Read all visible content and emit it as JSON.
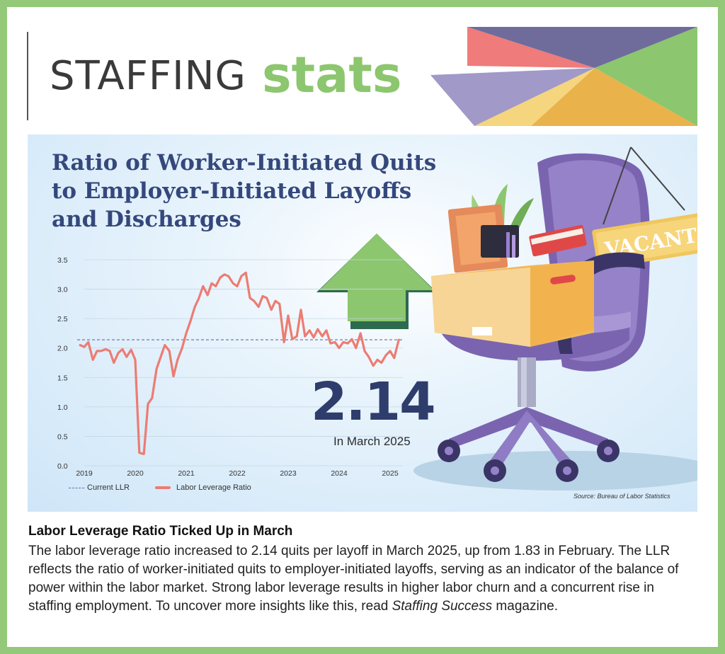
{
  "header": {
    "brand_word1": "STAFFING",
    "brand_word2": "stats",
    "colors": {
      "green": "#8cc66e",
      "navy": "#35487c",
      "border": "#94c97a"
    }
  },
  "chart_data": {
    "type": "line",
    "title": "Ratio of Worker-Initiated Quits to Employer-Initiated Layoffs and Discharges",
    "xlabel": "",
    "ylabel": "",
    "x_ticks": [
      "2019",
      "2020",
      "2021",
      "2022",
      "2023",
      "2024",
      "2025"
    ],
    "y_ticks": [
      "0.0",
      "0.5",
      "1.0",
      "1.5",
      "2.0",
      "2.5",
      "3.0",
      "3.5"
    ],
    "xlim": [
      2019,
      2025.25
    ],
    "ylim": [
      0,
      3.5
    ],
    "grid": true,
    "legend_position": "bottom-left",
    "series": [
      {
        "name": "Labor Leverage Ratio",
        "color": "#ec7c72",
        "points": [
          [
            2018.92,
            2.05
          ],
          [
            2019.0,
            2.02
          ],
          [
            2019.08,
            2.1
          ],
          [
            2019.17,
            1.8
          ],
          [
            2019.25,
            1.95
          ],
          [
            2019.33,
            1.95
          ],
          [
            2019.42,
            1.98
          ],
          [
            2019.5,
            1.95
          ],
          [
            2019.58,
            1.75
          ],
          [
            2019.67,
            1.92
          ],
          [
            2019.75,
            1.98
          ],
          [
            2019.83,
            1.85
          ],
          [
            2019.92,
            1.97
          ],
          [
            2020.0,
            1.8
          ],
          [
            2020.08,
            0.22
          ],
          [
            2020.17,
            0.2
          ],
          [
            2020.25,
            1.05
          ],
          [
            2020.33,
            1.15
          ],
          [
            2020.42,
            1.65
          ],
          [
            2020.5,
            1.85
          ],
          [
            2020.58,
            2.05
          ],
          [
            2020.67,
            1.95
          ],
          [
            2020.75,
            1.52
          ],
          [
            2020.83,
            1.8
          ],
          [
            2020.92,
            2.0
          ],
          [
            2021.0,
            2.25
          ],
          [
            2021.08,
            2.45
          ],
          [
            2021.17,
            2.7
          ],
          [
            2021.25,
            2.85
          ],
          [
            2021.33,
            3.05
          ],
          [
            2021.42,
            2.9
          ],
          [
            2021.5,
            3.1
          ],
          [
            2021.58,
            3.05
          ],
          [
            2021.67,
            3.2
          ],
          [
            2021.75,
            3.25
          ],
          [
            2021.83,
            3.22
          ],
          [
            2021.92,
            3.1
          ],
          [
            2022.0,
            3.05
          ],
          [
            2022.08,
            3.22
          ],
          [
            2022.17,
            3.28
          ],
          [
            2022.25,
            2.85
          ],
          [
            2022.33,
            2.8
          ],
          [
            2022.42,
            2.7
          ],
          [
            2022.5,
            2.88
          ],
          [
            2022.58,
            2.85
          ],
          [
            2022.67,
            2.65
          ],
          [
            2022.75,
            2.8
          ],
          [
            2022.83,
            2.75
          ],
          [
            2022.92,
            2.1
          ],
          [
            2023.0,
            2.55
          ],
          [
            2023.08,
            2.15
          ],
          [
            2023.17,
            2.2
          ],
          [
            2023.25,
            2.65
          ],
          [
            2023.33,
            2.2
          ],
          [
            2023.42,
            2.3
          ],
          [
            2023.5,
            2.18
          ],
          [
            2023.58,
            2.32
          ],
          [
            2023.67,
            2.2
          ],
          [
            2023.75,
            2.3
          ],
          [
            2023.83,
            2.08
          ],
          [
            2023.92,
            2.1
          ],
          [
            2024.0,
            2.0
          ],
          [
            2024.08,
            2.1
          ],
          [
            2024.17,
            2.08
          ],
          [
            2024.25,
            2.15
          ],
          [
            2024.33,
            2.0
          ],
          [
            2024.42,
            2.25
          ],
          [
            2024.5,
            1.95
          ],
          [
            2024.58,
            1.85
          ],
          [
            2024.67,
            1.7
          ],
          [
            2024.75,
            1.8
          ],
          [
            2024.83,
            1.75
          ],
          [
            2024.92,
            1.88
          ],
          [
            2025.0,
            1.95
          ],
          [
            2025.08,
            1.83
          ],
          [
            2025.17,
            2.14
          ]
        ]
      },
      {
        "name": "Current LLR",
        "color": "#6a6aa0",
        "style": "dashed",
        "value": 2.14
      }
    ],
    "legend": [
      "Current LLR",
      "Labor Leverage Ratio"
    ],
    "highlight_value": "2.14",
    "highlight_caption": "In March 2025",
    "source": "Source: Bureau of Labor Statistics"
  },
  "illustration": {
    "sign_text": "VACANT"
  },
  "article": {
    "heading": "Labor Leverage Ratio Ticked Up in March",
    "body_part1": "The labor leverage ratio increased to 2.14 quits per layoff in March 2025, up from 1.83 in February. The LLR reflects the ratio of worker-initiated quits to employer-initiated layoffs, serving as an indicator of the balance of power within the labor market. Strong labor leverage results in higher labor churn and a concurrent rise in staffing employment. To uncover more insights like this, read ",
    "magazine": "Staffing Success",
    "body_part2": " magazine."
  }
}
